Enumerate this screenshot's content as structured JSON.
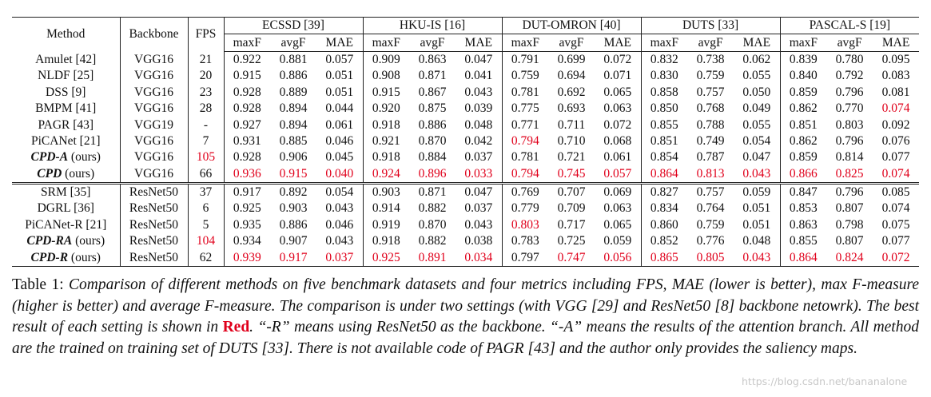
{
  "table": {
    "columns": {
      "method": "Method",
      "backbone": "Backbone",
      "fps": "FPS"
    },
    "datasets": [
      "ECSSD [39]",
      "HKU-IS [16]",
      "DUT-OMRON [40]",
      "DUTS [33]",
      "PASCAL-S [19]"
    ],
    "metrics": [
      "maxF",
      "avgF",
      "MAE"
    ],
    "groups": [
      {
        "rows": [
          {
            "method": {
              "name": "Amulet [42]"
            },
            "backbone": "VGG16",
            "cells": [
              "21",
              "0.922",
              "0.881",
              "0.057",
              "0.909",
              "0.863",
              "0.047",
              "0.791",
              "0.699",
              "0.072",
              "0.832",
              "0.738",
              "0.062",
              "0.839",
              "0.780",
              "0.095"
            ],
            "red": []
          },
          {
            "method": {
              "name": "NLDF [25]"
            },
            "backbone": "VGG16",
            "cells": [
              "20",
              "0.915",
              "0.886",
              "0.051",
              "0.908",
              "0.871",
              "0.041",
              "0.759",
              "0.694",
              "0.071",
              "0.830",
              "0.759",
              "0.055",
              "0.840",
              "0.792",
              "0.083"
            ],
            "red": []
          },
          {
            "method": {
              "name": "DSS [9]"
            },
            "backbone": "VGG16",
            "cells": [
              "23",
              "0.928",
              "0.889",
              "0.051",
              "0.915",
              "0.867",
              "0.043",
              "0.781",
              "0.692",
              "0.065",
              "0.858",
              "0.757",
              "0.050",
              "0.859",
              "0.796",
              "0.081"
            ],
            "red": []
          },
          {
            "method": {
              "name": "BMPM [41]"
            },
            "backbone": "VGG16",
            "cells": [
              "28",
              "0.928",
              "0.894",
              "0.044",
              "0.920",
              "0.875",
              "0.039",
              "0.775",
              "0.693",
              "0.063",
              "0.850",
              "0.768",
              "0.049",
              "0.862",
              "0.770",
              "0.074"
            ],
            "red": [
              15
            ]
          },
          {
            "method": {
              "name": "PAGR [43]"
            },
            "backbone": "VGG19",
            "cells": [
              "-",
              "0.927",
              "0.894",
              "0.061",
              "0.918",
              "0.886",
              "0.048",
              "0.771",
              "0.711",
              "0.072",
              "0.855",
              "0.788",
              "0.055",
              "0.851",
              "0.803",
              "0.092"
            ],
            "red": []
          },
          {
            "method": {
              "name": "PiCANet [21]"
            },
            "backbone": "VGG16",
            "cells": [
              "7",
              "0.931",
              "0.885",
              "0.046",
              "0.921",
              "0.870",
              "0.042",
              "0.794",
              "0.710",
              "0.068",
              "0.851",
              "0.749",
              "0.054",
              "0.862",
              "0.796",
              "0.076"
            ],
            "red": [
              7
            ]
          },
          {
            "method": {
              "name": "CPD-A",
              "suffix": "(ours)"
            },
            "backbone": "VGG16",
            "cells": [
              "105",
              "0.928",
              "0.906",
              "0.045",
              "0.918",
              "0.884",
              "0.037",
              "0.781",
              "0.721",
              "0.061",
              "0.854",
              "0.787",
              "0.047",
              "0.859",
              "0.814",
              "0.077"
            ],
            "red": [
              0
            ]
          },
          {
            "method": {
              "name": "CPD",
              "suffix": "(ours)"
            },
            "backbone": "VGG16",
            "cells": [
              "66",
              "0.936",
              "0.915",
              "0.040",
              "0.924",
              "0.896",
              "0.033",
              "0.794",
              "0.745",
              "0.057",
              "0.864",
              "0.813",
              "0.043",
              "0.866",
              "0.825",
              "0.074"
            ],
            "red": [
              1,
              2,
              3,
              4,
              5,
              6,
              7,
              8,
              9,
              10,
              11,
              12,
              13,
              14,
              15
            ]
          }
        ]
      },
      {
        "rows": [
          {
            "method": {
              "name": "SRM [35]"
            },
            "backbone": "ResNet50",
            "cells": [
              "37",
              "0.917",
              "0.892",
              "0.054",
              "0.903",
              "0.871",
              "0.047",
              "0.769",
              "0.707",
              "0.069",
              "0.827",
              "0.757",
              "0.059",
              "0.847",
              "0.796",
              "0.085"
            ],
            "red": []
          },
          {
            "method": {
              "name": "DGRL [36]"
            },
            "backbone": "ResNet50",
            "cells": [
              "6",
              "0.925",
              "0.903",
              "0.043",
              "0.914",
              "0.882",
              "0.037",
              "0.779",
              "0.709",
              "0.063",
              "0.834",
              "0.764",
              "0.051",
              "0.853",
              "0.807",
              "0.074"
            ],
            "red": []
          },
          {
            "method": {
              "name": "PiCANet-R [21]"
            },
            "backbone": "ResNet50",
            "cells": [
              "5",
              "0.935",
              "0.886",
              "0.046",
              "0.919",
              "0.870",
              "0.043",
              "0.803",
              "0.717",
              "0.065",
              "0.860",
              "0.759",
              "0.051",
              "0.863",
              "0.798",
              "0.075"
            ],
            "red": [
              7
            ]
          },
          {
            "method": {
              "name": "CPD-RA",
              "suffix": "(ours)"
            },
            "backbone": "ResNet50",
            "cells": [
              "104",
              "0.934",
              "0.907",
              "0.043",
              "0.918",
              "0.882",
              "0.038",
              "0.783",
              "0.725",
              "0.059",
              "0.852",
              "0.776",
              "0.048",
              "0.855",
              "0.807",
              "0.077"
            ],
            "red": [
              0
            ]
          },
          {
            "method": {
              "name": "CPD-R",
              "suffix": "(ours)"
            },
            "backbone": "ResNet50",
            "cells": [
              "62",
              "0.939",
              "0.917",
              "0.037",
              "0.925",
              "0.891",
              "0.034",
              "0.797",
              "0.747",
              "0.056",
              "0.865",
              "0.805",
              "0.043",
              "0.864",
              "0.824",
              "0.072"
            ],
            "red": [
              1,
              2,
              3,
              4,
              5,
              6,
              8,
              9,
              10,
              11,
              12,
              13,
              14,
              15
            ]
          }
        ]
      }
    ]
  },
  "caption": {
    "label": "Table 1:",
    "parts": [
      {
        "text": "Comparison of different methods on five benchmark datasets and four metrics including FPS, MAE (lower is better), max F-measure (higher is better) and average F-measure.  The comparison is under two settings (with VGG [29] and ResNet50 [8] backbone netowrk).  The best result of each setting is shown in "
      },
      {
        "text": "Red",
        "style": "red-bold"
      },
      {
        "text": ".  “-R” means using ResNet50 as the backbone. “-A” means the results of the attention branch. All method are the trained on training set of DUTS [33]. There is not available code of PAGR [43] and the author only provides the saliency maps."
      }
    ]
  },
  "watermark": "https://blog.csdn.net/bananalone"
}
